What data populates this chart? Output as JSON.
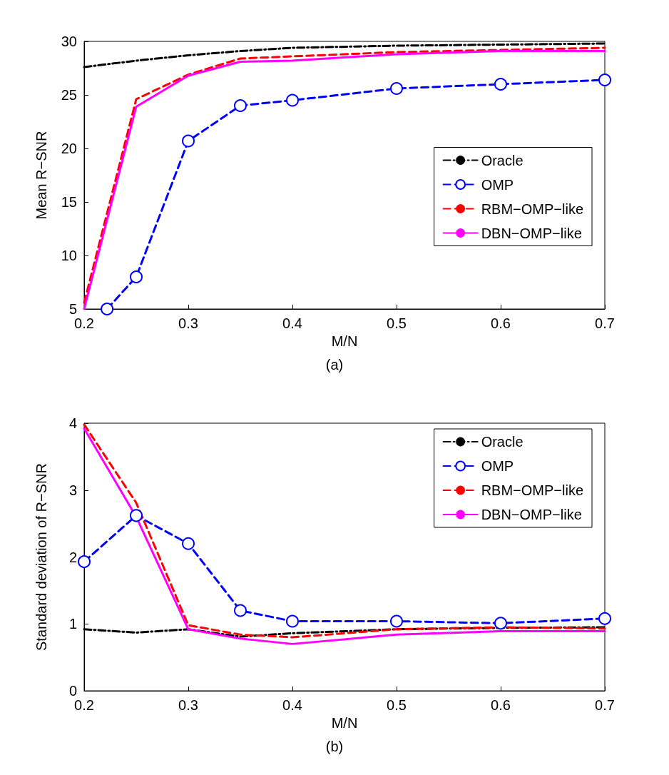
{
  "chart_data": [
    {
      "type": "line",
      "xlabel": "M/N",
      "ylabel": "Mean R−SNR",
      "annotations": [
        "(a)"
      ],
      "x": [
        0.2,
        0.25,
        0.3,
        0.35,
        0.4,
        0.5,
        0.6,
        0.7
      ],
      "xlim": [
        0.2,
        0.7
      ],
      "xticks": [
        0.2,
        0.3,
        0.4,
        0.5,
        0.6,
        0.7
      ],
      "ylim": [
        5,
        30
      ],
      "yticks": [
        5,
        10,
        15,
        20,
        25,
        30
      ],
      "grid": false,
      "legend": "right",
      "series": [
        {
          "name": "Oracle",
          "color": "#000000",
          "line_style": "dashdot",
          "marker": "none",
          "values": [
            27.6,
            28.2,
            28.7,
            29.1,
            29.4,
            29.6,
            29.7,
            29.8
          ]
        },
        {
          "name": "OMP",
          "color": "#0000ff",
          "line_style": "dashed",
          "marker": "circle",
          "x": [
            0.222,
            0.25,
            0.3,
            0.35,
            0.4,
            0.5,
            0.6,
            0.7
          ],
          "values": [
            5,
            8.0,
            20.7,
            24.0,
            24.5,
            25.6,
            26.0,
            26.4
          ]
        },
        {
          "name": "RBM−OMP−like",
          "color": "#ff0000",
          "line_style": "dashed",
          "marker": "none",
          "values": [
            5.6,
            24.6,
            26.9,
            28.4,
            28.6,
            29.0,
            29.2,
            29.4
          ]
        },
        {
          "name": "DBN−OMP−like",
          "color": "#ff00ff",
          "line_style": "solid",
          "marker": "none",
          "values": [
            5,
            23.9,
            26.8,
            28.1,
            28.2,
            28.8,
            29.1,
            29.1
          ]
        }
      ]
    },
    {
      "type": "line",
      "xlabel": "M/N",
      "ylabel": "Standard deviation of R−SNR",
      "annotations": [
        "(b)"
      ],
      "x": [
        0.2,
        0.25,
        0.3,
        0.35,
        0.4,
        0.5,
        0.6,
        0.7
      ],
      "xlim": [
        0.2,
        0.7
      ],
      "xticks": [
        0.2,
        0.3,
        0.4,
        0.5,
        0.6,
        0.7
      ],
      "ylim": [
        0,
        4
      ],
      "yticks": [
        0,
        1,
        2,
        3,
        4
      ],
      "grid": false,
      "legend": "top right",
      "series": [
        {
          "name": "Oracle",
          "color": "#000000",
          "line_style": "dashdot",
          "marker": "none",
          "values": [
            0.92,
            0.87,
            0.92,
            0.81,
            0.86,
            0.92,
            0.94,
            0.95
          ]
        },
        {
          "name": "OMP",
          "color": "#0000ff",
          "line_style": "dashed",
          "marker": "circle",
          "values": [
            1.93,
            2.62,
            2.2,
            1.2,
            1.04,
            1.04,
            1.01,
            1.08
          ]
        },
        {
          "name": "RBM−OMP−like",
          "color": "#ff0000",
          "line_style": "dashed",
          "marker": "none",
          "values": [
            3.98,
            2.81,
            0.98,
            0.84,
            0.8,
            0.92,
            0.95,
            0.93
          ]
        },
        {
          "name": "DBN−OMP−like",
          "color": "#ff00ff",
          "line_style": "solid",
          "marker": "none",
          "values": [
            3.92,
            2.6,
            0.92,
            0.78,
            0.7,
            0.84,
            0.89,
            0.89
          ]
        }
      ]
    }
  ]
}
